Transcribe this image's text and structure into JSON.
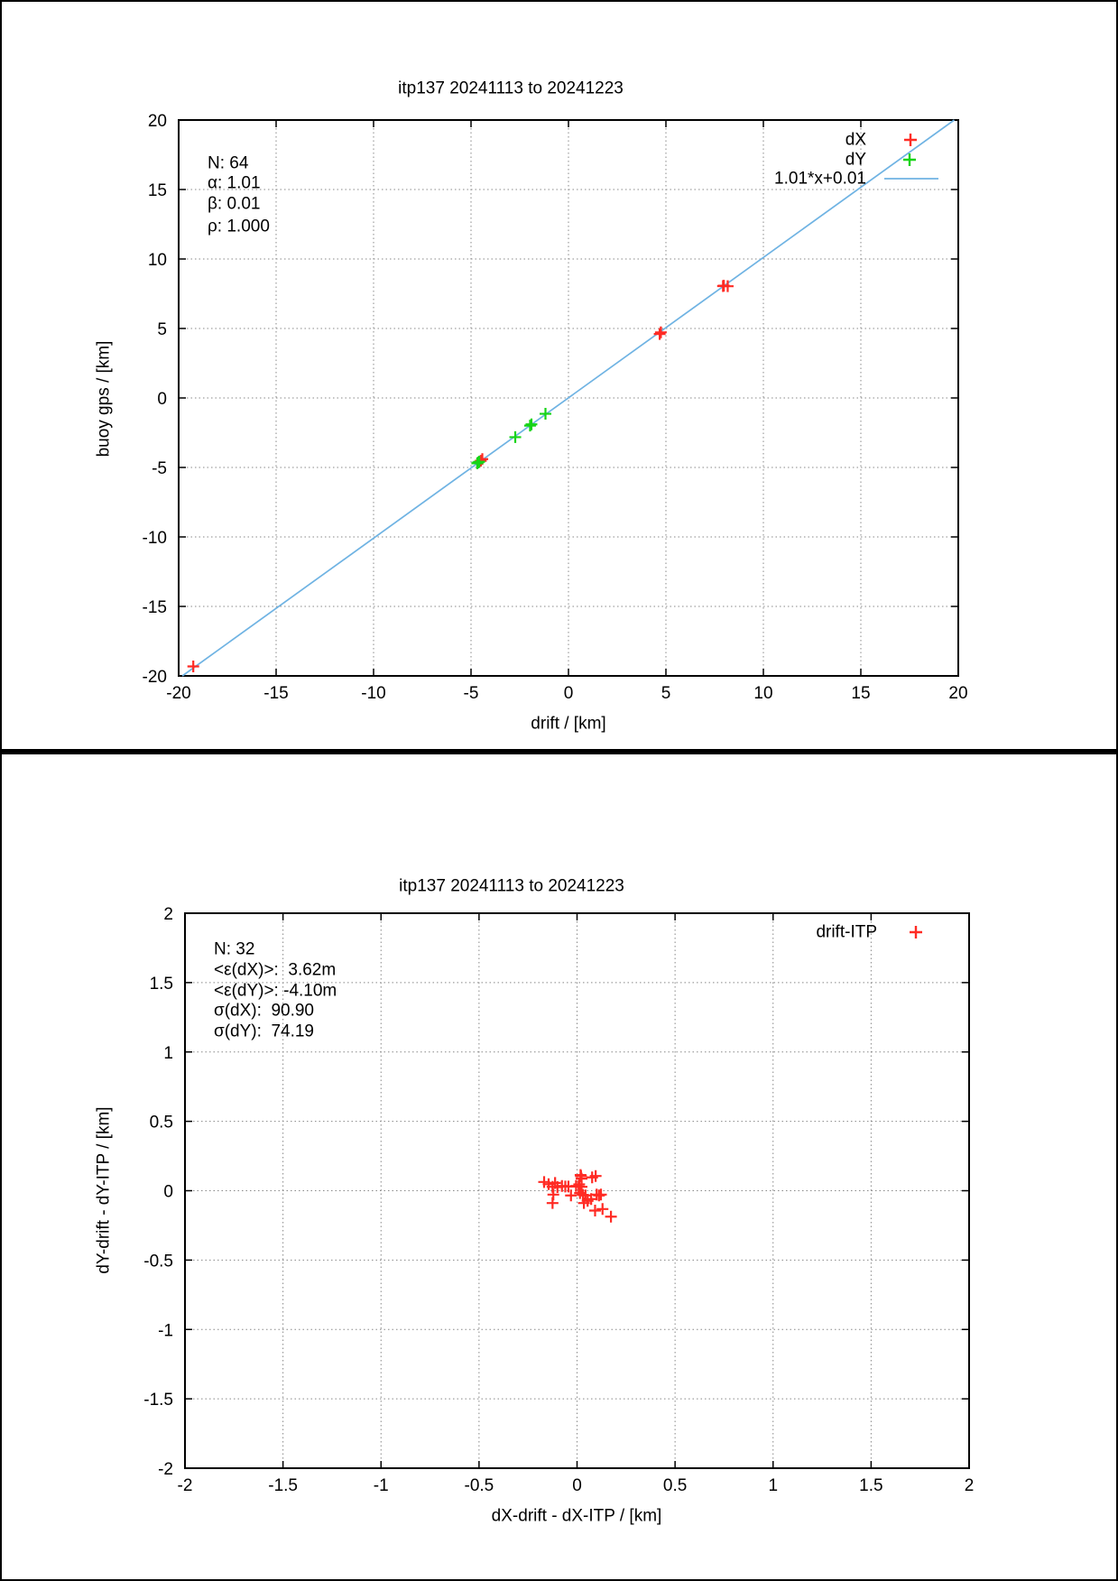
{
  "colors": {
    "red": "#ff2b24",
    "green": "#17d417",
    "blue": "#6fb3e3",
    "grid": "#888888",
    "axis": "#000000",
    "text": "#000000",
    "background": "#ffffff"
  },
  "chart_data": [
    {
      "type": "scatter",
      "title": "itp137 20241113 to 20241223",
      "xlabel": "drift / [km]",
      "ylabel": "buoy gps / [km]",
      "xlim": [
        -20,
        20
      ],
      "ylim": [
        -20,
        20
      ],
      "xticks": [
        -20,
        -15,
        -10,
        -5,
        0,
        5,
        10,
        15,
        20
      ],
      "yticks": [
        -20,
        -15,
        -10,
        -5,
        0,
        5,
        10,
        15,
        20
      ],
      "grid": true,
      "legend_position": "top-right",
      "stats_lines": [
        "N: 64",
        "α: 1.01",
        "β: 0.01",
        "ρ: 1.000"
      ],
      "series": [
        {
          "name": "dX",
          "marker": "plus",
          "color": "#ff2b24",
          "points": [
            [
              -19.25,
              -19.32
            ],
            [
              -4.5,
              -4.52
            ],
            [
              -4.42,
              -4.4
            ],
            [
              4.68,
              4.6
            ],
            [
              4.74,
              4.72
            ],
            [
              7.93,
              8.05
            ],
            [
              7.97,
              8.08
            ],
            [
              8.17,
              8.04
            ]
          ]
        },
        {
          "name": "dY",
          "marker": "plus",
          "color": "#17d417",
          "points": [
            [
              -4.68,
              -4.7
            ],
            [
              -4.63,
              -4.64
            ],
            [
              -4.58,
              -4.59
            ],
            [
              -2.73,
              -2.82
            ],
            [
              -1.97,
              -1.99
            ],
            [
              -1.9,
              -1.9
            ],
            [
              -1.18,
              -1.14
            ]
          ]
        }
      ],
      "fit": {
        "label": "1.01*x+0.01",
        "slope": 1.01,
        "intercept": 0.01,
        "color": "#6fb3e3"
      }
    },
    {
      "type": "scatter",
      "title": "itp137 20241113 to 20241223",
      "xlabel": "dX-drift - dX-ITP / [km]",
      "ylabel": "dY-drift - dY-ITP / [km]",
      "xlim": [
        -2,
        2
      ],
      "ylim": [
        -2,
        2
      ],
      "xticks": [
        -2,
        -1.5,
        -1,
        -0.5,
        0,
        0.5,
        1,
        1.5,
        2
      ],
      "yticks": [
        -2,
        -1.5,
        -1,
        -0.5,
        0,
        0.5,
        1,
        1.5,
        2
      ],
      "grid": true,
      "legend_position": "top-right",
      "stats_lines": [
        "N: 32",
        "<ε(dX)>:  3.62m",
        "<ε(dY)>: -4.10m",
        "σ(dX):  90.90",
        "σ(dY):  74.19"
      ],
      "series": [
        {
          "name": "drift-ITP",
          "marker": "plus",
          "color": "#ff2b24",
          "points": [
            [
              -0.168,
              0.063
            ],
            [
              -0.145,
              0.047
            ],
            [
              -0.125,
              0.028
            ],
            [
              -0.112,
              0.056
            ],
            [
              -0.1,
              0.026
            ],
            [
              -0.077,
              0.034
            ],
            [
              -0.06,
              0.03
            ],
            [
              -0.044,
              0.03
            ],
            [
              -0.005,
              0.034
            ],
            [
              -0.121,
              -0.028
            ],
            [
              -0.125,
              -0.089
            ],
            [
              -0.031,
              -0.034
            ],
            [
              0.018,
              0.113
            ],
            [
              0.02,
              0.105
            ],
            [
              0.023,
              0.087
            ],
            [
              0.011,
              0.046
            ],
            [
              0.008,
              0.03
            ],
            [
              0.023,
              0.028
            ],
            [
              0.015,
              -0.017
            ],
            [
              0.03,
              -0.03
            ],
            [
              0.043,
              -0.034
            ],
            [
              0.035,
              -0.089
            ],
            [
              0.054,
              -0.073
            ],
            [
              0.077,
              0.096
            ],
            [
              0.095,
              0.106
            ],
            [
              0.072,
              -0.06
            ],
            [
              0.1,
              -0.028
            ],
            [
              0.112,
              -0.034
            ],
            [
              0.122,
              -0.028
            ],
            [
              0.092,
              -0.143
            ],
            [
              0.13,
              -0.132
            ],
            [
              0.173,
              -0.187
            ]
          ]
        }
      ]
    }
  ]
}
